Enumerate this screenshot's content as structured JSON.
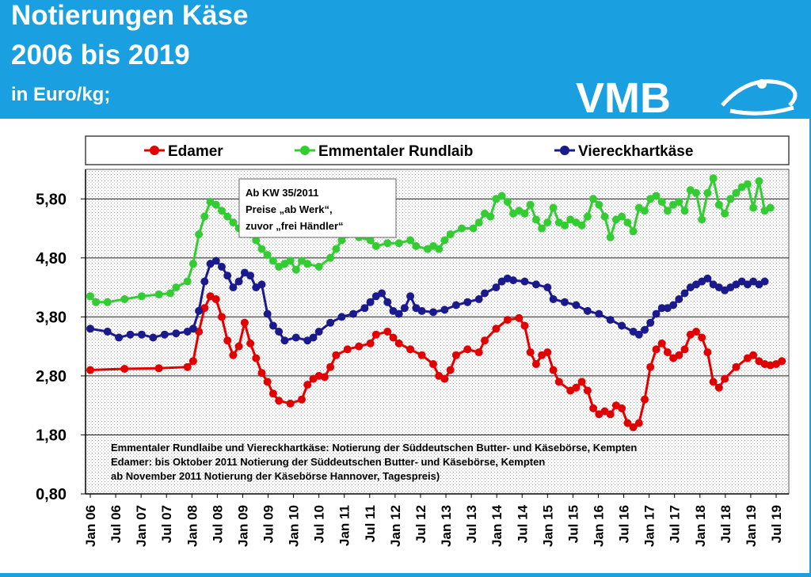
{
  "header": {
    "title_line1": "Notierungen  Käse",
    "title_line2": "2006 bis 2019",
    "unit": "in  Euro/kg;",
    "logo_text": "VMB"
  },
  "colors": {
    "background": "#1a9fe0",
    "edamer": "#e00000",
    "emmentaler": "#33cc33",
    "viereck": "#1a1a8c"
  },
  "chart_data": {
    "type": "line",
    "title": "",
    "xlabel": "",
    "ylabel": "",
    "ylim": [
      0.8,
      6.3
    ],
    "yticks": [
      "0,80",
      "1,80",
      "2,80",
      "3,80",
      "4,80",
      "5,80"
    ],
    "xticks": [
      "Jan 06",
      "Jul 06",
      "Jan 07",
      "Jul 07",
      "Jan 08",
      "Jul 08",
      "Jan 09",
      "Jul 09",
      "Jan 10",
      "Jul 10",
      "Jan 11",
      "Jul 11",
      "Jan 12",
      "Jul 12",
      "Jan 13",
      "Jul 13",
      "Jan 14",
      "Jul 14",
      "Jan 15",
      "Jul 15",
      "Jan 16",
      "Jul 16",
      "Jan 17",
      "Jul 17",
      "Jan 18",
      "Jul 18",
      "Jan 19",
      "Jul 19"
    ],
    "grid": true,
    "legend_position": "top",
    "annotation": {
      "lines": [
        "Ab KW 35/2011",
        "Preise „ab Werk“,",
        "zuvor „frei Händler“"
      ]
    },
    "notes": [
      "Emmentaler  Rundlaibe und Viereckhartkäse:  Notierung der Süddeutschen Butter-   und Käsebörse, Kempten",
      "Edamer:  bis Oktober 2011  Notierung der Süddeutschen Butter- und Käsebörse, Kempten",
      "ab November 2011  Notierung der Käsebörse Hannover,  Tagespreis)"
    ],
    "series": [
      {
        "name": "Edamer",
        "color": "#e00000",
        "points": [
          [
            0,
            2.9
          ],
          [
            6,
            2.92
          ],
          [
            12,
            2.93
          ],
          [
            17,
            2.95
          ],
          [
            18,
            3.05
          ],
          [
            19,
            3.55
          ],
          [
            20,
            3.95
          ],
          [
            21,
            4.15
          ],
          [
            22,
            4.1
          ],
          [
            23,
            3.8
          ],
          [
            24,
            3.4
          ],
          [
            25,
            3.15
          ],
          [
            26,
            3.3
          ],
          [
            27,
            3.7
          ],
          [
            28,
            3.35
          ],
          [
            29,
            3.1
          ],
          [
            30,
            2.85
          ],
          [
            31,
            2.7
          ],
          [
            32,
            2.5
          ],
          [
            33,
            2.38
          ],
          [
            35,
            2.33
          ],
          [
            37,
            2.4
          ],
          [
            38,
            2.65
          ],
          [
            39,
            2.75
          ],
          [
            40,
            2.8
          ],
          [
            41,
            2.78
          ],
          [
            42,
            2.95
          ],
          [
            43,
            3.15
          ],
          [
            45,
            3.25
          ],
          [
            47,
            3.3
          ],
          [
            49,
            3.35
          ],
          [
            50,
            3.5
          ],
          [
            52,
            3.55
          ],
          [
            53,
            3.45
          ],
          [
            54,
            3.35
          ],
          [
            56,
            3.25
          ],
          [
            58,
            3.15
          ],
          [
            60,
            3.0
          ],
          [
            61,
            2.8
          ],
          [
            62,
            2.75
          ],
          [
            63,
            2.9
          ],
          [
            64,
            3.15
          ],
          [
            66,
            3.25
          ],
          [
            68,
            3.2
          ],
          [
            69,
            3.4
          ],
          [
            71,
            3.6
          ],
          [
            73,
            3.75
          ],
          [
            75,
            3.78
          ],
          [
            76,
            3.65
          ],
          [
            77,
            3.2
          ],
          [
            78,
            3.0
          ],
          [
            79,
            3.15
          ],
          [
            80,
            3.2
          ],
          [
            81,
            2.9
          ],
          [
            82,
            2.7
          ],
          [
            84,
            2.55
          ],
          [
            85,
            2.6
          ],
          [
            86,
            2.7
          ],
          [
            87,
            2.55
          ],
          [
            88,
            2.25
          ],
          [
            89,
            2.15
          ],
          [
            90,
            2.2
          ],
          [
            91,
            2.15
          ],
          [
            92,
            2.3
          ],
          [
            93,
            2.25
          ],
          [
            94,
            2.0
          ],
          [
            95,
            1.93
          ],
          [
            96,
            2.0
          ],
          [
            97,
            2.4
          ],
          [
            98,
            2.95
          ],
          [
            99,
            3.25
          ],
          [
            100,
            3.35
          ],
          [
            101,
            3.2
          ],
          [
            102,
            3.1
          ],
          [
            103,
            3.15
          ],
          [
            104,
            3.25
          ],
          [
            105,
            3.5
          ],
          [
            106,
            3.55
          ],
          [
            107,
            3.45
          ],
          [
            108,
            3.2
          ],
          [
            109,
            2.7
          ],
          [
            110,
            2.6
          ],
          [
            111,
            2.75
          ],
          [
            113,
            2.95
          ],
          [
            115,
            3.1
          ],
          [
            116,
            3.15
          ],
          [
            117,
            3.05
          ],
          [
            118,
            3.0
          ],
          [
            119,
            2.98
          ],
          [
            120,
            3.0
          ],
          [
            121,
            3.05
          ]
        ]
      },
      {
        "name": "Emmentaler Rundlaib",
        "color": "#33cc33",
        "points": [
          [
            0,
            4.15
          ],
          [
            1,
            4.05
          ],
          [
            3,
            4.05
          ],
          [
            6,
            4.1
          ],
          [
            9,
            4.15
          ],
          [
            12,
            4.18
          ],
          [
            14,
            4.2
          ],
          [
            15,
            4.3
          ],
          [
            17,
            4.4
          ],
          [
            18,
            4.7
          ],
          [
            19,
            5.2
          ],
          [
            20,
            5.5
          ],
          [
            21,
            5.75
          ],
          [
            22,
            5.7
          ],
          [
            23,
            5.6
          ],
          [
            24,
            5.5
          ],
          [
            25,
            5.4
          ],
          [
            26,
            5.3
          ],
          [
            27,
            5.25
          ],
          [
            28,
            5.2
          ],
          [
            29,
            5.1
          ],
          [
            30,
            4.95
          ],
          [
            31,
            4.85
          ],
          [
            32,
            4.75
          ],
          [
            33,
            4.65
          ],
          [
            34,
            4.7
          ],
          [
            35,
            4.75
          ],
          [
            36,
            4.6
          ],
          [
            37,
            4.75
          ],
          [
            38,
            4.7
          ],
          [
            40,
            4.65
          ],
          [
            42,
            4.8
          ],
          [
            43,
            4.95
          ],
          [
            44,
            5.1
          ],
          [
            45,
            5.2
          ],
          [
            47,
            5.15
          ],
          [
            49,
            5.1
          ],
          [
            50,
            5.0
          ],
          [
            52,
            5.05
          ],
          [
            54,
            5.05
          ],
          [
            56,
            5.1
          ],
          [
            57,
            5.0
          ],
          [
            59,
            4.95
          ],
          [
            60,
            5.0
          ],
          [
            61,
            4.95
          ],
          [
            62,
            5.1
          ],
          [
            63,
            5.2
          ],
          [
            65,
            5.3
          ],
          [
            67,
            5.3
          ],
          [
            68,
            5.4
          ],
          [
            69,
            5.55
          ],
          [
            70,
            5.5
          ],
          [
            71,
            5.8
          ],
          [
            72,
            5.85
          ],
          [
            73,
            5.75
          ],
          [
            74,
            5.55
          ],
          [
            75,
            5.6
          ],
          [
            76,
            5.55
          ],
          [
            77,
            5.7
          ],
          [
            78,
            5.45
          ],
          [
            79,
            5.3
          ],
          [
            80,
            5.4
          ],
          [
            81,
            5.65
          ],
          [
            82,
            5.4
          ],
          [
            83,
            5.35
          ],
          [
            84,
            5.45
          ],
          [
            85,
            5.4
          ],
          [
            86,
            5.35
          ],
          [
            87,
            5.5
          ],
          [
            88,
            5.8
          ],
          [
            89,
            5.7
          ],
          [
            90,
            5.5
          ],
          [
            91,
            5.15
          ],
          [
            92,
            5.45
          ],
          [
            93,
            5.5
          ],
          [
            94,
            5.4
          ],
          [
            95,
            5.25
          ],
          [
            96,
            5.65
          ],
          [
            97,
            5.6
          ],
          [
            98,
            5.8
          ],
          [
            99,
            5.85
          ],
          [
            100,
            5.75
          ],
          [
            101,
            5.6
          ],
          [
            102,
            5.7
          ],
          [
            103,
            5.75
          ],
          [
            104,
            5.6
          ],
          [
            105,
            5.95
          ],
          [
            106,
            5.9
          ],
          [
            107,
            5.45
          ],
          [
            108,
            5.9
          ],
          [
            109,
            6.15
          ],
          [
            110,
            5.7
          ],
          [
            111,
            5.55
          ],
          [
            112,
            5.8
          ],
          [
            113,
            5.9
          ],
          [
            114,
            6.0
          ],
          [
            115,
            6.05
          ],
          [
            116,
            5.65
          ],
          [
            117,
            6.1
          ],
          [
            118,
            5.6
          ],
          [
            119,
            5.65
          ]
        ]
      },
      {
        "name": "Viereckhartkäse",
        "color": "#1a1a8c",
        "points": [
          [
            0,
            3.6
          ],
          [
            3,
            3.55
          ],
          [
            5,
            3.45
          ],
          [
            7,
            3.5
          ],
          [
            9,
            3.5
          ],
          [
            11,
            3.45
          ],
          [
            13,
            3.5
          ],
          [
            15,
            3.52
          ],
          [
            17,
            3.55
          ],
          [
            18,
            3.6
          ],
          [
            19,
            3.9
          ],
          [
            20,
            4.4
          ],
          [
            21,
            4.7
          ],
          [
            22,
            4.75
          ],
          [
            23,
            4.65
          ],
          [
            24,
            4.5
          ],
          [
            25,
            4.3
          ],
          [
            26,
            4.4
          ],
          [
            27,
            4.55
          ],
          [
            28,
            4.5
          ],
          [
            29,
            4.3
          ],
          [
            30,
            4.35
          ],
          [
            31,
            3.85
          ],
          [
            32,
            3.65
          ],
          [
            33,
            3.55
          ],
          [
            34,
            3.4
          ],
          [
            36,
            3.45
          ],
          [
            38,
            3.4
          ],
          [
            39,
            3.45
          ],
          [
            40,
            3.55
          ],
          [
            42,
            3.7
          ],
          [
            44,
            3.8
          ],
          [
            46,
            3.85
          ],
          [
            48,
            3.95
          ],
          [
            49,
            4.05
          ],
          [
            50,
            4.15
          ],
          [
            51,
            4.2
          ],
          [
            52,
            4.05
          ],
          [
            53,
            3.9
          ],
          [
            54,
            3.85
          ],
          [
            55,
            3.95
          ],
          [
            56,
            4.15
          ],
          [
            57,
            3.95
          ],
          [
            58,
            3.9
          ],
          [
            60,
            3.88
          ],
          [
            62,
            3.92
          ],
          [
            64,
            4.0
          ],
          [
            66,
            4.05
          ],
          [
            68,
            4.1
          ],
          [
            69,
            4.2
          ],
          [
            71,
            4.3
          ],
          [
            72,
            4.4
          ],
          [
            73,
            4.45
          ],
          [
            74,
            4.42
          ],
          [
            76,
            4.4
          ],
          [
            78,
            4.35
          ],
          [
            80,
            4.3
          ],
          [
            81,
            4.1
          ],
          [
            83,
            4.05
          ],
          [
            85,
            4.0
          ],
          [
            87,
            3.9
          ],
          [
            89,
            3.85
          ],
          [
            91,
            3.75
          ],
          [
            93,
            3.65
          ],
          [
            95,
            3.55
          ],
          [
            96,
            3.5
          ],
          [
            97,
            3.58
          ],
          [
            98,
            3.7
          ],
          [
            99,
            3.85
          ],
          [
            100,
            3.95
          ],
          [
            101,
            3.95
          ],
          [
            102,
            4.0
          ],
          [
            103,
            4.1
          ],
          [
            104,
            4.2
          ],
          [
            105,
            4.3
          ],
          [
            106,
            4.35
          ],
          [
            107,
            4.4
          ],
          [
            108,
            4.45
          ],
          [
            109,
            4.35
          ],
          [
            110,
            4.3
          ],
          [
            111,
            4.25
          ],
          [
            112,
            4.3
          ],
          [
            113,
            4.35
          ],
          [
            114,
            4.4
          ],
          [
            115,
            4.35
          ],
          [
            116,
            4.4
          ],
          [
            117,
            4.35
          ],
          [
            118,
            4.4
          ]
        ]
      }
    ]
  }
}
